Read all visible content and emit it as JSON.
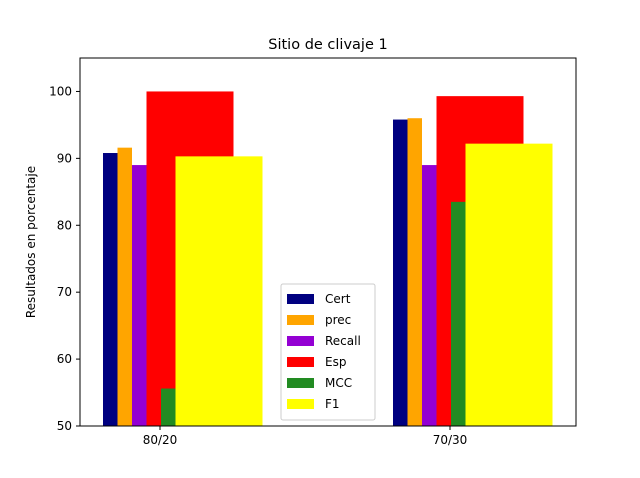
{
  "chart_data": {
    "type": "bar",
    "title": "Sitio de clivaje 1",
    "xlabel": "",
    "ylabel": "Resultados en porcentaje",
    "categories": [
      "80/20",
      "70/30"
    ],
    "ylim": [
      50,
      105
    ],
    "yticks": [
      50,
      60,
      70,
      80,
      90,
      100
    ],
    "grid": false,
    "legend_position": "lower-center",
    "series": [
      {
        "name": "Cert",
        "color": "#000080",
        "values": [
          90.8,
          95.8
        ]
      },
      {
        "name": "prec",
        "color": "#FFA500",
        "values": [
          91.6,
          96.0
        ]
      },
      {
        "name": "Recall",
        "color": "#9400D3",
        "values": [
          89.0,
          89.0
        ]
      },
      {
        "name": "Esp",
        "color": "#FF0000",
        "values": [
          100.0,
          99.3
        ]
      },
      {
        "name": "MCC",
        "color": "#228B22",
        "values": [
          55.6,
          83.5
        ]
      },
      {
        "name": "F1",
        "color": "#FFFF00",
        "values": [
          90.3,
          92.2
        ]
      }
    ]
  }
}
